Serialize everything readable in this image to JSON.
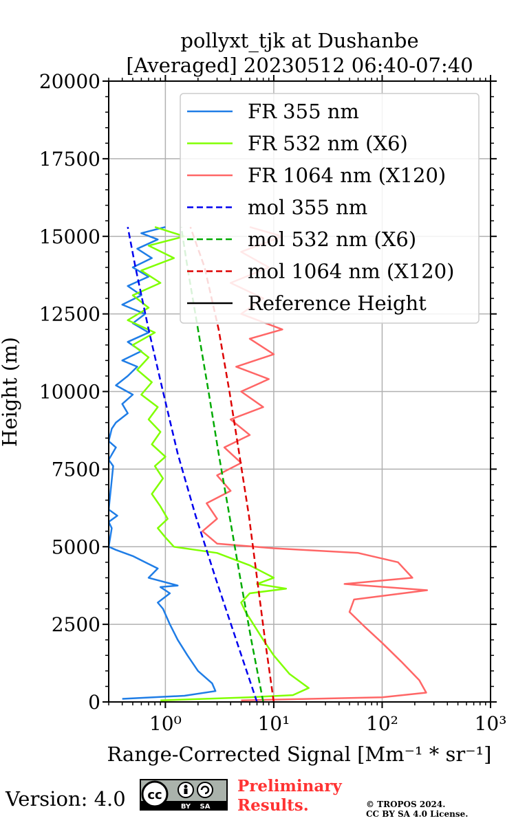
{
  "title_line1": "pollyxt_tjk at Dushanbe",
  "title_line2": "[Averaged] 20230512 06:40-07:40",
  "footer": {
    "version": "Version: 4.0",
    "license_badge": {
      "icon": "cc-by-sa-icon",
      "labels": [
        "cc",
        "BY",
        "SA"
      ]
    },
    "preliminary_line1": "Preliminary",
    "preliminary_line2": "Results.",
    "copyright_line1": "© TROPOS 2024.",
    "copyright_line2": "CC BY SA 4.0 License."
  },
  "chart_data": {
    "type": "line",
    "xlabel": "Range-Corrected Signal [Mm⁻¹ * sr⁻¹]",
    "ylabel": "Height (m)",
    "xscale": "log",
    "xlim": [
      0.3,
      1000
    ],
    "ylim": [
      0,
      20000
    ],
    "x_ticks": [
      {
        "value": 1,
        "label": "10⁰"
      },
      {
        "value": 10,
        "label": "10¹"
      },
      {
        "value": 100,
        "label": "10²"
      },
      {
        "value": 1000,
        "label": "10³"
      }
    ],
    "y_ticks": [
      0,
      2500,
      5000,
      7500,
      10000,
      12500,
      15000,
      17500,
      20000
    ],
    "grid": true,
    "legend_position": "top-right",
    "series": [
      {
        "name": "FR 355 nm",
        "color": "#1f7de6",
        "style": "solid",
        "points": [
          [
            0.4,
            100
          ],
          [
            1.5,
            200
          ],
          [
            2.9,
            350
          ],
          [
            2.7,
            600
          ],
          [
            2.0,
            1000
          ],
          [
            1.6,
            1500
          ],
          [
            1.3,
            2000
          ],
          [
            1.1,
            2500
          ],
          [
            0.95,
            3000
          ],
          [
            0.85,
            3200
          ],
          [
            1.1,
            3500
          ],
          [
            0.9,
            3700
          ],
          [
            1.3,
            3750
          ],
          [
            0.7,
            4000
          ],
          [
            0.85,
            4300
          ],
          [
            0.65,
            4500
          ],
          [
            0.5,
            4700
          ],
          [
            0.35,
            4900
          ],
          [
            0.3,
            5000
          ],
          [
            0.32,
            5600
          ],
          [
            0.3,
            5800
          ],
          [
            0.36,
            6000
          ],
          [
            0.3,
            6200
          ],
          [
            0.33,
            7600
          ],
          [
            0.3,
            7800
          ],
          [
            0.35,
            8200
          ],
          [
            0.3,
            8400
          ],
          [
            0.32,
            8800
          ],
          [
            0.35,
            9000
          ],
          [
            0.45,
            9300
          ],
          [
            0.4,
            9600
          ],
          [
            0.5,
            9900
          ],
          [
            0.35,
            10200
          ],
          [
            0.45,
            10500
          ],
          [
            0.55,
            10800
          ],
          [
            0.4,
            11000
          ],
          [
            0.6,
            11300
          ],
          [
            0.45,
            11600
          ],
          [
            0.7,
            11900
          ],
          [
            0.5,
            12200
          ],
          [
            0.65,
            12500
          ],
          [
            0.4,
            12800
          ],
          [
            0.6,
            13100
          ],
          [
            0.45,
            13400
          ],
          [
            0.7,
            13700
          ],
          [
            0.5,
            14000
          ],
          [
            0.75,
            14300
          ],
          [
            0.55,
            14600
          ],
          [
            0.85,
            14900
          ],
          [
            0.6,
            15100
          ],
          [
            1.0,
            15300
          ]
        ]
      },
      {
        "name": "FR 532 nm (X6)",
        "color": "#80ff00",
        "style": "solid",
        "points": [
          [
            0.9,
            50
          ],
          [
            6,
            150
          ],
          [
            15,
            220
          ],
          [
            21,
            450
          ],
          [
            14,
            900
          ],
          [
            10,
            1500
          ],
          [
            8,
            2000
          ],
          [
            6.5,
            2500
          ],
          [
            5.5,
            2900
          ],
          [
            5,
            3200
          ],
          [
            6,
            3500
          ],
          [
            13,
            3650
          ],
          [
            7,
            3800
          ],
          [
            10,
            4000
          ],
          [
            6,
            4400
          ],
          [
            3,
            4800
          ],
          [
            1.2,
            5000
          ],
          [
            1.0,
            5300
          ],
          [
            0.85,
            5600
          ],
          [
            1.05,
            5900
          ],
          [
            0.9,
            6300
          ],
          [
            0.75,
            6700
          ],
          [
            0.95,
            7200
          ],
          [
            0.8,
            7600
          ],
          [
            1.0,
            7900
          ],
          [
            0.75,
            8300
          ],
          [
            0.9,
            8700
          ],
          [
            0.7,
            9100
          ],
          [
            0.85,
            9500
          ],
          [
            0.6,
            9900
          ],
          [
            0.75,
            10300
          ],
          [
            0.55,
            10700
          ],
          [
            0.7,
            11100
          ],
          [
            0.5,
            11500
          ],
          [
            0.8,
            11900
          ],
          [
            0.45,
            12300
          ],
          [
            0.7,
            12700
          ],
          [
            0.5,
            13100
          ],
          [
            0.9,
            13500
          ],
          [
            0.6,
            13900
          ],
          [
            1.2,
            14300
          ],
          [
            0.7,
            14700
          ],
          [
            1.5,
            15000
          ],
          [
            0.8,
            15300
          ]
        ]
      },
      {
        "name": "FR 1064 nm (X120)",
        "color": "#ff6666",
        "style": "solid",
        "points": [
          [
            5,
            50
          ],
          [
            100,
            150
          ],
          [
            255,
            300
          ],
          [
            220,
            700
          ],
          [
            150,
            1300
          ],
          [
            100,
            1900
          ],
          [
            70,
            2400
          ],
          [
            50,
            2900
          ],
          [
            55,
            3300
          ],
          [
            260,
            3600
          ],
          [
            45,
            3800
          ],
          [
            190,
            4000
          ],
          [
            140,
            4500
          ],
          [
            60,
            4800
          ],
          [
            10,
            4950
          ],
          [
            3,
            5100
          ],
          [
            2.2,
            5500
          ],
          [
            3,
            5900
          ],
          [
            2.4,
            6400
          ],
          [
            4,
            6800
          ],
          [
            3,
            7300
          ],
          [
            5,
            7700
          ],
          [
            3.5,
            8200
          ],
          [
            6,
            8600
          ],
          [
            4,
            9100
          ],
          [
            8,
            9500
          ],
          [
            5,
            10000
          ],
          [
            9,
            10400
          ],
          [
            4.5,
            10800
          ],
          [
            10,
            11200
          ],
          [
            6,
            11700
          ],
          [
            12,
            12000
          ],
          [
            5,
            12500
          ],
          [
            8,
            13000
          ],
          [
            4,
            13500
          ],
          [
            9,
            14000
          ],
          [
            5,
            14500
          ],
          [
            12,
            15000
          ],
          [
            6,
            15300
          ]
        ]
      },
      {
        "name": "mol 355 nm",
        "color": "#0000ee",
        "style": "dashed",
        "points": [
          [
            7,
            0
          ],
          [
            4.5,
            2000
          ],
          [
            2.9,
            4000
          ],
          [
            1.9,
            6000
          ],
          [
            1.3,
            8000
          ],
          [
            0.95,
            10000
          ],
          [
            0.7,
            12000
          ],
          [
            0.53,
            14000
          ],
          [
            0.45,
            15300
          ]
        ]
      },
      {
        "name": "mol 532 nm (X6)",
        "color": "#00aa00",
        "style": "dashed",
        "points": [
          [
            8,
            0
          ],
          [
            6.2,
            2000
          ],
          [
            4.9,
            4000
          ],
          [
            3.9,
            6000
          ],
          [
            3.1,
            8000
          ],
          [
            2.5,
            10000
          ],
          [
            2.0,
            12000
          ],
          [
            1.6,
            14000
          ],
          [
            1.4,
            15300
          ]
        ]
      },
      {
        "name": "mol 1064 nm (X120)",
        "color": "#dd0000",
        "style": "dashed",
        "points": [
          [
            10,
            0
          ],
          [
            8.3,
            2000
          ],
          [
            7.0,
            4000
          ],
          [
            5.9,
            6000
          ],
          [
            4.8,
            8000
          ],
          [
            3.9,
            10000
          ],
          [
            3.1,
            12000
          ],
          [
            2.3,
            14000
          ],
          [
            1.7,
            15300
          ]
        ]
      },
      {
        "name": "Reference Height",
        "color": "#000000",
        "style": "solid",
        "points": []
      }
    ]
  }
}
